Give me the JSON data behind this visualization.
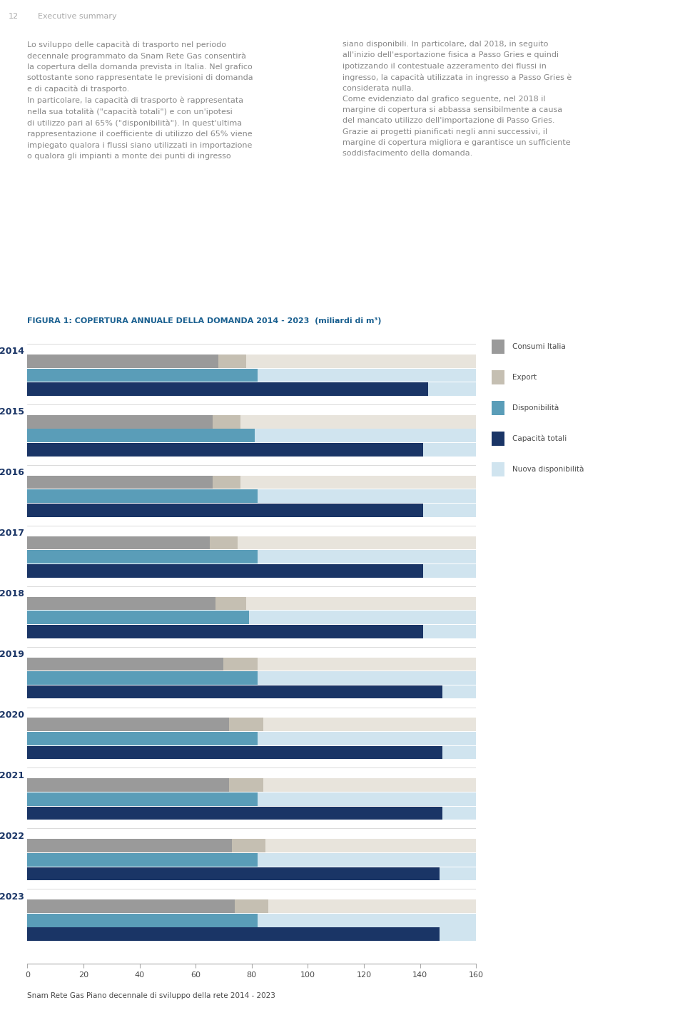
{
  "title": "FIGURA 1: COPERTURA ANNUALE DELLA DOMANDA 2014 - 2023  (miliardi di m³)",
  "footer": "Snam Rete Gas Piano decennale di sviluppo della rete 2014 - 2023",
  "years": [
    2014,
    2015,
    2016,
    2017,
    2018,
    2019,
    2020,
    2021,
    2022,
    2023
  ],
  "xlim": [
    0,
    160
  ],
  "xticks": [
    0,
    20,
    40,
    60,
    80,
    100,
    120,
    140,
    160
  ],
  "consumi_italia": [
    68,
    66,
    66,
    65,
    67,
    70,
    72,
    72,
    73,
    74
  ],
  "export": [
    10,
    10,
    10,
    10,
    11,
    12,
    12,
    12,
    12,
    12
  ],
  "disponibilita": [
    82,
    81,
    82,
    82,
    79,
    82,
    82,
    82,
    82,
    82
  ],
  "capacita_totali": [
    143,
    141,
    141,
    141,
    141,
    148,
    148,
    148,
    147,
    147
  ],
  "color_consumi": "#9a9a9a",
  "color_export": "#c5bfb2",
  "color_disponibilita": "#5a9db8",
  "color_capacita": "#1a3566",
  "color_nuova_disp_bg": "#d0e4ef",
  "color_consumi_bg": "#e8e4dc",
  "legend_labels": [
    "Consumi Italia",
    "Export",
    "Disponibilità",
    "Capacità totali",
    "Nuova disponibilità"
  ],
  "legend_colors": [
    "#9a9a9a",
    "#c5bfb2",
    "#5a9db8",
    "#1a3566",
    "#d0e4ef"
  ],
  "text_color": "#4a4a4a",
  "title_color": "#1a6090",
  "year_color": "#1a3566",
  "background": "#ffffff"
}
